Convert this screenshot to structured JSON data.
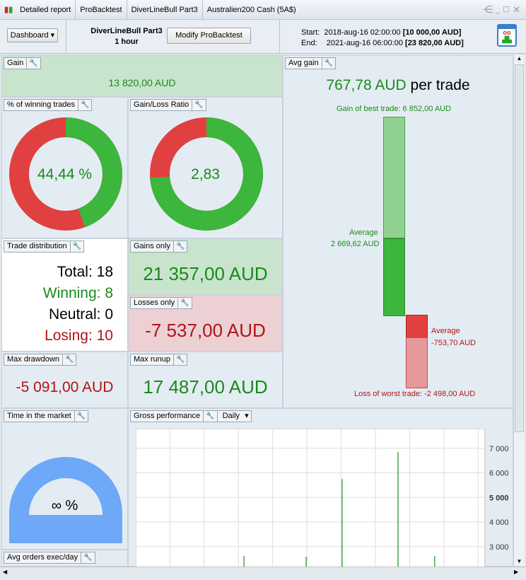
{
  "tabs": [
    "Detailed report",
    "ProBacktest",
    "DiverLineBull Part3",
    "Australien200 Cash (5A$)"
  ],
  "toolbar": {
    "dashboard": "Dashboard",
    "strategy": "DiverLineBull Part3",
    "timeframe": "1 hour",
    "modify": "Modify ProBacktest",
    "start_label": "Start:",
    "start": "2018-aug-16 02:00:00",
    "start_capital": "[10 000,00 AUD]",
    "end_label": "End:",
    "end": "2021-aug-16 06:00:00",
    "end_capital": "[23 820,00 AUD]"
  },
  "gain": {
    "title": "Gain",
    "value": "13 820,00 AUD"
  },
  "winning": {
    "title": "% of winning trades",
    "value": "44,44 %",
    "fraction": 0.4444
  },
  "ratio": {
    "title": "Gain/Loss Ratio",
    "value": "2,83",
    "fraction": 0.739
  },
  "avg": {
    "title": "Avg gain",
    "value": "767,78 AUD",
    "suffix": "per trade",
    "best": "Gain of best trade: 6 852,00 AUD",
    "avg_label": "Average",
    "avg_gain": "2 669,62 AUD",
    "avg_loss_label": "Average",
    "avg_loss": "-753,70 AUD",
    "worst": "Loss of worst trade: -2 498,00 AUD"
  },
  "dist": {
    "title": "Trade distribution",
    "total": "Total: 18",
    "winning": "Winning: 8",
    "neutral": "Neutral: 0",
    "losing": "Losing: 10"
  },
  "gains_only": {
    "title": "Gains only",
    "value": "21 357,00 AUD"
  },
  "losses_only": {
    "title": "Losses only",
    "value": "-7 537,00 AUD"
  },
  "drawdown": {
    "title": "Max drawdown",
    "value": "-5 091,00 AUD"
  },
  "runup": {
    "title": "Max runup",
    "value": "17 487,00 AUD"
  },
  "time": {
    "title": "Time in the market",
    "value": "∞ %"
  },
  "orders": {
    "title": "Avg orders exec/day"
  },
  "gross": {
    "title": "Gross performance",
    "period": "Daily"
  },
  "chart_data": {
    "type": "bar",
    "title": "Gross performance",
    "yticks": [
      "7 000",
      "6 000",
      "5 000",
      "4 000",
      "3 000"
    ],
    "ylim": [
      2160,
      7800
    ],
    "x_fraction": [
      0.31,
      0.488,
      0.591,
      0.751,
      0.856
    ],
    "values": [
      2620,
      2590,
      5750,
      6850,
      2620
    ]
  }
}
